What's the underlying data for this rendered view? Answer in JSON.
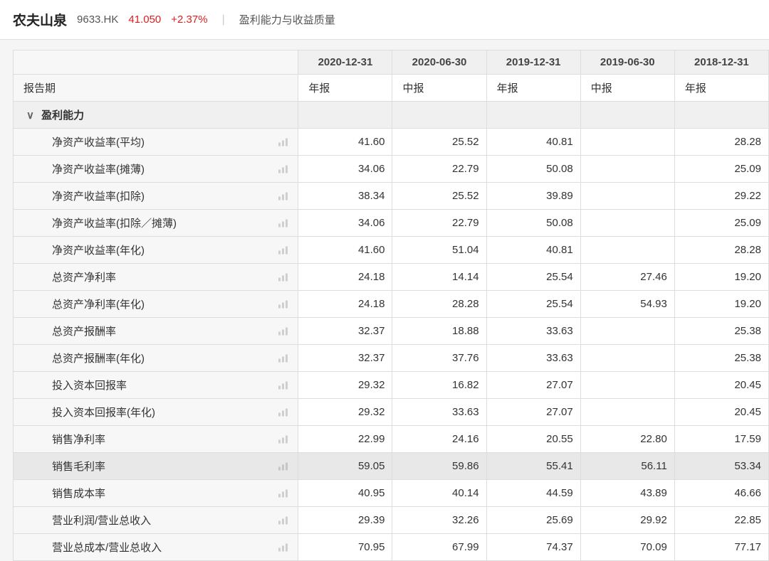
{
  "header": {
    "company_name": "农夫山泉",
    "ticker": "9633.HK",
    "price": "41.050",
    "change": "+2.37%",
    "page_title": "盈利能力与收益质量"
  },
  "table": {
    "date_headers": [
      "2020-12-31",
      "2020-06-30",
      "2019-12-31",
      "2019-06-30",
      "2018-12-31"
    ],
    "report_period_label": "报告期",
    "report_types": [
      "年报",
      "中报",
      "年报",
      "中报",
      "年报"
    ],
    "section_title": "盈利能力",
    "rows": [
      {
        "label": "净资产收益率(平均)",
        "values": [
          "41.60",
          "25.52",
          "40.81",
          "",
          "28.28"
        ]
      },
      {
        "label": "净资产收益率(摊薄)",
        "values": [
          "34.06",
          "22.79",
          "50.08",
          "",
          "25.09"
        ]
      },
      {
        "label": "净资产收益率(扣除)",
        "values": [
          "38.34",
          "25.52",
          "39.89",
          "",
          "29.22"
        ]
      },
      {
        "label": "净资产收益率(扣除／摊薄)",
        "values": [
          "34.06",
          "22.79",
          "50.08",
          "",
          "25.09"
        ]
      },
      {
        "label": "净资产收益率(年化)",
        "values": [
          "41.60",
          "51.04",
          "40.81",
          "",
          "28.28"
        ]
      },
      {
        "label": "总资产净利率",
        "values": [
          "24.18",
          "14.14",
          "25.54",
          "27.46",
          "19.20"
        ]
      },
      {
        "label": "总资产净利率(年化)",
        "values": [
          "24.18",
          "28.28",
          "25.54",
          "54.93",
          "19.20"
        ]
      },
      {
        "label": "总资产报酬率",
        "values": [
          "32.37",
          "18.88",
          "33.63",
          "",
          "25.38"
        ]
      },
      {
        "label": "总资产报酬率(年化)",
        "values": [
          "32.37",
          "37.76",
          "33.63",
          "",
          "25.38"
        ]
      },
      {
        "label": "投入资本回报率",
        "values": [
          "29.32",
          "16.82",
          "27.07",
          "",
          "20.45"
        ]
      },
      {
        "label": "投入资本回报率(年化)",
        "values": [
          "29.32",
          "33.63",
          "27.07",
          "",
          "20.45"
        ]
      },
      {
        "label": "销售净利率",
        "values": [
          "22.99",
          "24.16",
          "20.55",
          "22.80",
          "17.59"
        ]
      },
      {
        "label": "销售毛利率",
        "values": [
          "59.05",
          "59.86",
          "55.41",
          "56.11",
          "53.34"
        ],
        "highlight": true
      },
      {
        "label": "销售成本率",
        "values": [
          "40.95",
          "40.14",
          "44.59",
          "43.89",
          "46.66"
        ]
      },
      {
        "label": "营业利润/营业总收入",
        "values": [
          "29.39",
          "32.26",
          "25.69",
          "29.92",
          "22.85"
        ]
      },
      {
        "label": "营业总成本/营业总收入",
        "values": [
          "70.95",
          "67.99",
          "74.37",
          "70.09",
          "77.17"
        ]
      }
    ]
  },
  "colors": {
    "red": "#d92020",
    "border": "#dddddd",
    "header_bg": "#f0f0f0",
    "label_bg": "#f7f7f7"
  }
}
